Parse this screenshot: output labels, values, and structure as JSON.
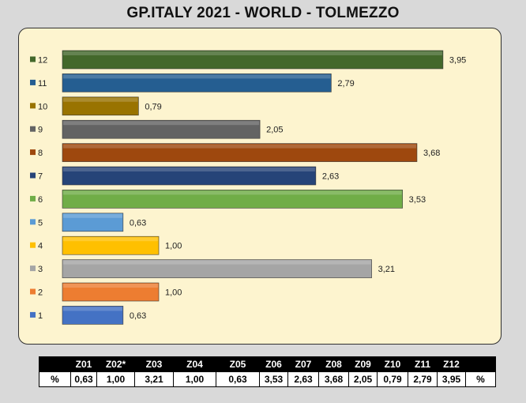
{
  "chart_data": {
    "type": "bar",
    "orientation": "horizontal",
    "title": "GP.ITALY 2021 - WORLD - TOLMEZZO",
    "categories": [
      "1",
      "2",
      "3",
      "4",
      "5",
      "6",
      "7",
      "8",
      "9",
      "10",
      "11",
      "12"
    ],
    "values": [
      0.63,
      1.0,
      3.21,
      1.0,
      0.63,
      3.53,
      2.63,
      3.68,
      2.05,
      0.79,
      2.79,
      3.95
    ],
    "value_labels": [
      "0,63",
      "1,00",
      "3,21",
      "1,00",
      "0,63",
      "3,53",
      "2,63",
      "3,68",
      "2,05",
      "0,79",
      "2,79",
      "3,95"
    ],
    "colors": [
      "#4472c4",
      "#ed7d31",
      "#a5a5a5",
      "#ffc000",
      "#5b9bd5",
      "#70ad47",
      "#264478",
      "#9e480e",
      "#636363",
      "#997300",
      "#255e91",
      "#43682b"
    ],
    "xlim": [
      0,
      4.2
    ],
    "legend": "left",
    "grid": false
  },
  "table": {
    "headers": [
      "",
      "Z01",
      "Z02*",
      "Z03",
      "Z04",
      "Z05",
      "Z06",
      "Z07",
      "Z08",
      "Z09",
      "Z10",
      "Z11",
      "Z12",
      ""
    ],
    "row": [
      "%",
      "0,63",
      "1,00",
      "3,21",
      "1,00",
      "0,63",
      "3,53",
      "2,63",
      "3,68",
      "2,05",
      "0,79",
      "2,79",
      "3,95",
      "%"
    ]
  }
}
